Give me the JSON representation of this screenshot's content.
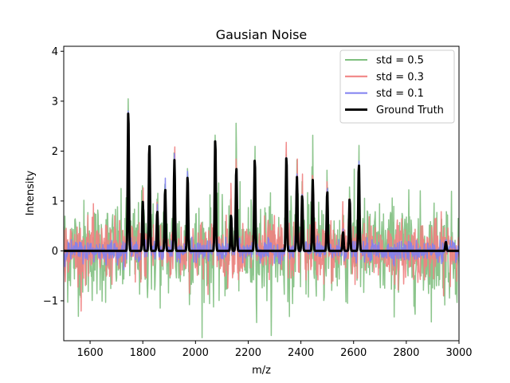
{
  "chart_data": {
    "type": "line",
    "title": "Gausian Noise",
    "xlabel": "m/z",
    "ylabel": "Intensity",
    "xlim": [
      1500,
      3000
    ],
    "ylim": [
      -1.8,
      4.1
    ],
    "xticks": [
      1600,
      1800,
      2000,
      2200,
      2400,
      2600,
      2800,
      3000
    ],
    "yticks": [
      -1,
      0,
      1,
      2,
      3,
      4
    ],
    "ytick_labels": [
      "−1",
      "0",
      "1",
      "2",
      "3",
      "4"
    ],
    "grid": false,
    "legend_position": "top-right",
    "series": [
      {
        "name": "std = 0.5",
        "color": "#7fbf7f",
        "noise_std": 0.5
      },
      {
        "name": "std = 0.3",
        "color": "#f07f7f",
        "noise_std": 0.3
      },
      {
        "name": "std = 0.1",
        "color": "#7f7ff0",
        "noise_std": 0.1
      },
      {
        "name": "Ground Truth",
        "color": "#000000",
        "noise_std": 0
      }
    ],
    "ground_truth_peaks": [
      {
        "x": 1745,
        "y": 2.82
      },
      {
        "x": 1800,
        "y": 0.98
      },
      {
        "x": 1825,
        "y": 2.15
      },
      {
        "x": 1855,
        "y": 0.8
      },
      {
        "x": 1885,
        "y": 1.25
      },
      {
        "x": 1920,
        "y": 1.82
      },
      {
        "x": 1970,
        "y": 1.5
      },
      {
        "x": 2075,
        "y": 2.25
      },
      {
        "x": 2135,
        "y": 0.72
      },
      {
        "x": 2155,
        "y": 1.68
      },
      {
        "x": 2225,
        "y": 1.85
      },
      {
        "x": 2345,
        "y": 1.9
      },
      {
        "x": 2385,
        "y": 1.48
      },
      {
        "x": 2405,
        "y": 1.12
      },
      {
        "x": 2445,
        "y": 1.42
      },
      {
        "x": 2500,
        "y": 1.2
      },
      {
        "x": 2560,
        "y": 0.38
      },
      {
        "x": 2585,
        "y": 1.05
      },
      {
        "x": 2620,
        "y": 1.75
      },
      {
        "x": 2950,
        "y": 0.18
      }
    ]
  }
}
